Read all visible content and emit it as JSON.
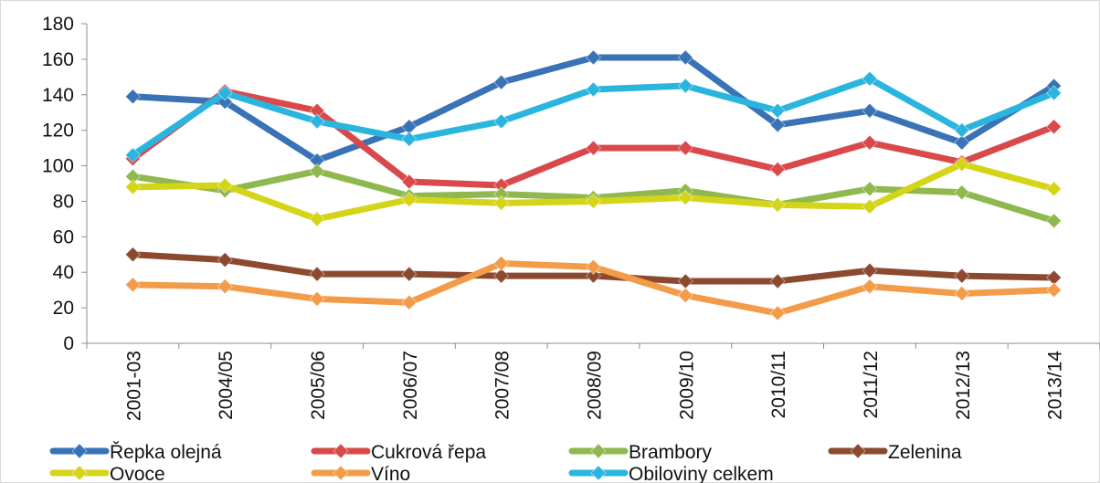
{
  "chart_data": {
    "type": "line",
    "categories": [
      "2001-03",
      "2004/05",
      "2005/06",
      "2006/07",
      "2007/08",
      "2008/09",
      "2009/10",
      "2010/11",
      "2011/12",
      "2012/13",
      "2013/14"
    ],
    "ylim": [
      0,
      180
    ],
    "yticks": [
      0,
      20,
      40,
      60,
      80,
      100,
      120,
      140,
      160,
      180
    ],
    "grid": false,
    "legend_position": "bottom",
    "series": [
      {
        "name": "Řepka olejná",
        "color": "#3a73b5",
        "values": [
          139,
          136,
          103,
          122,
          147,
          161,
          161,
          123,
          131,
          113,
          145
        ]
      },
      {
        "name": "Cukrová řepa",
        "color": "#d9494b",
        "values": [
          104,
          142,
          131,
          91,
          89,
          110,
          110,
          98,
          113,
          102,
          122
        ]
      },
      {
        "name": "Brambory",
        "color": "#8fb84e",
        "values": [
          94,
          86,
          97,
          83,
          84,
          82,
          86,
          78,
          87,
          85,
          69
        ]
      },
      {
        "name": "Zelenina",
        "color": "#8b4a30",
        "values": [
          50,
          47,
          39,
          39,
          38,
          38,
          35,
          35,
          41,
          38,
          37
        ]
      },
      {
        "name": "Ovoce",
        "color": "#d4d418",
        "values": [
          88,
          89,
          70,
          81,
          79,
          80,
          82,
          78,
          77,
          101,
          87
        ]
      },
      {
        "name": "Víno",
        "color": "#f29c4a",
        "values": [
          33,
          32,
          25,
          23,
          45,
          43,
          27,
          17,
          32,
          28,
          30
        ]
      },
      {
        "name": "Obiloviny celkem",
        "color": "#2ab5de",
        "values": [
          106,
          141,
          125,
          115,
          125,
          143,
          145,
          131,
          149,
          120,
          141
        ]
      }
    ]
  }
}
